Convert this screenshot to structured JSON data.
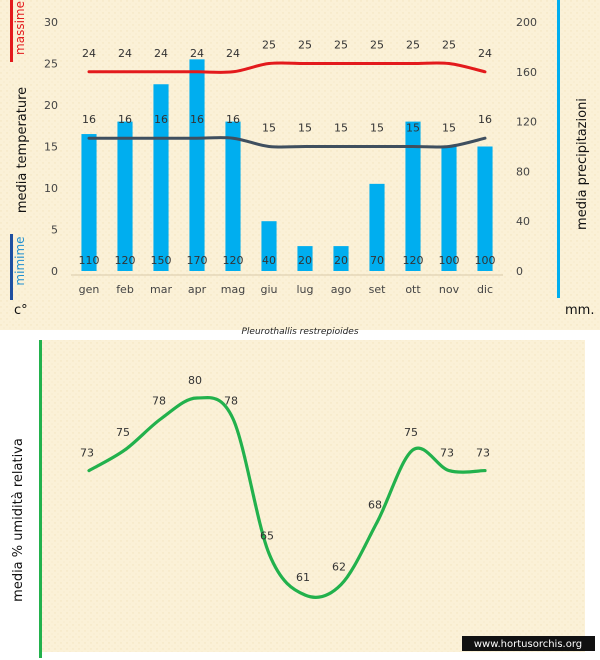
{
  "chart_data": [
    {
      "type": "bar+line",
      "title": "",
      "categories": [
        "gen",
        "feb",
        "mar",
        "apr",
        "mag",
        "giu",
        "lug",
        "ago",
        "set",
        "ott",
        "nov",
        "dic"
      ],
      "left_axis": {
        "ylim": [
          0,
          30
        ],
        "ticks": [
          "0",
          "5",
          "10",
          "15",
          "20",
          "25",
          "30"
        ],
        "unit_label": "c°"
      },
      "right_axis": {
        "ylim": [
          0,
          200
        ],
        "ticks": [
          "0",
          "40",
          "80",
          "120",
          "160",
          "200"
        ],
        "unit_label": "mm."
      },
      "ylabel_left": "media  temperature",
      "ylabel_right": "media  precipitazioni",
      "legend_max": "massime",
      "legend_min": "mimime",
      "colors": {
        "max": "#e31a1c",
        "min": "#3f4f5f",
        "bars": "#00aeef",
        "min_legend": "#1f4fa0",
        "right_axis_bar": "#00aeef"
      },
      "series": [
        {
          "name": "massime",
          "axis": "left",
          "kind": "line",
          "values": [
            24,
            24,
            24,
            24,
            24,
            25,
            25,
            25,
            25,
            25,
            25,
            24
          ],
          "labels": [
            "24",
            "24",
            "24",
            "24",
            "24",
            "25",
            "25",
            "25",
            "25",
            "25",
            "25",
            "24"
          ]
        },
        {
          "name": "mimime",
          "axis": "left",
          "kind": "line",
          "values": [
            16,
            16,
            16,
            16,
            16,
            15,
            15,
            15,
            15,
            15,
            15,
            16
          ],
          "labels": [
            "16",
            "16",
            "16",
            "16",
            "16",
            "15",
            "15",
            "15",
            "15",
            "15",
            "15",
            "16"
          ]
        },
        {
          "name": "precipitazioni",
          "axis": "right",
          "kind": "bar",
          "values": [
            110,
            120,
            150,
            170,
            120,
            40,
            20,
            20,
            70,
            120,
            100,
            100
          ],
          "labels": [
            "110",
            "120",
            "150",
            "170",
            "120",
            "40",
            "20",
            "20",
            "70",
            "120",
            "100",
            "100"
          ]
        }
      ]
    },
    {
      "type": "line",
      "title": "Pleurothallis restrepioides",
      "ylabel": "media %  umidità relativa",
      "color": "#22b14c",
      "values": [
        73,
        75,
        78,
        80,
        78,
        65,
        61,
        62,
        68,
        75,
        73,
        73
      ],
      "labels": [
        "73",
        "75",
        "78",
        "80",
        "78",
        "65",
        "61",
        "62",
        "68",
        "75",
        "73",
        "73"
      ]
    }
  ],
  "watermark": "www.hortusorchis.org"
}
